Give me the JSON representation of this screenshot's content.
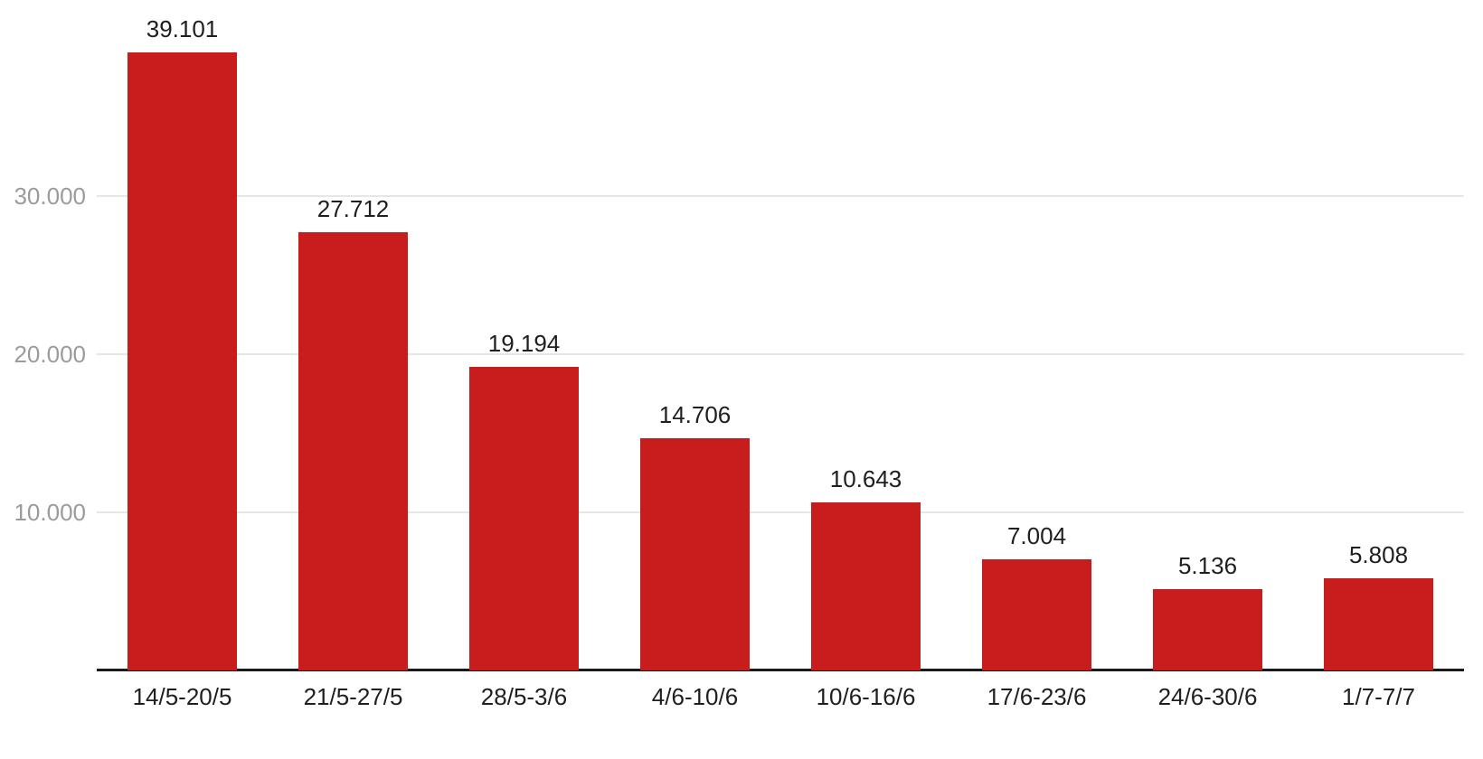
{
  "chart_data": {
    "type": "bar",
    "title": "",
    "xlabel": "",
    "ylabel": "",
    "categories": [
      "14/5-20/5",
      "21/5-27/5",
      "28/5-3/6",
      "4/6-10/6",
      "10/6-16/6",
      "17/6-23/6",
      "24/6-30/6",
      "1/7-7/7"
    ],
    "values": [
      39101,
      27712,
      19194,
      14706,
      10643,
      7004,
      5136,
      5808
    ],
    "value_labels": [
      "39.101",
      "27.712",
      "19.194",
      "14.706",
      "10.643",
      "7.004",
      "5.136",
      "5.808"
    ],
    "yticks": [
      {
        "value": 10000,
        "label": "10.000"
      },
      {
        "value": 20000,
        "label": "20.000"
      },
      {
        "value": 30000,
        "label": "30.000"
      }
    ],
    "ylim": [
      0,
      42400
    ],
    "grid": true,
    "legend": "none",
    "colors": {
      "bar": "#c71e1d",
      "gridline": "#e6e6e6",
      "axis_line": "#1a1a1a",
      "tick_label": "#9b9b9b",
      "value_label": "#1f1f1f",
      "category_label": "#1f1f1f",
      "background": "#ffffff"
    }
  }
}
